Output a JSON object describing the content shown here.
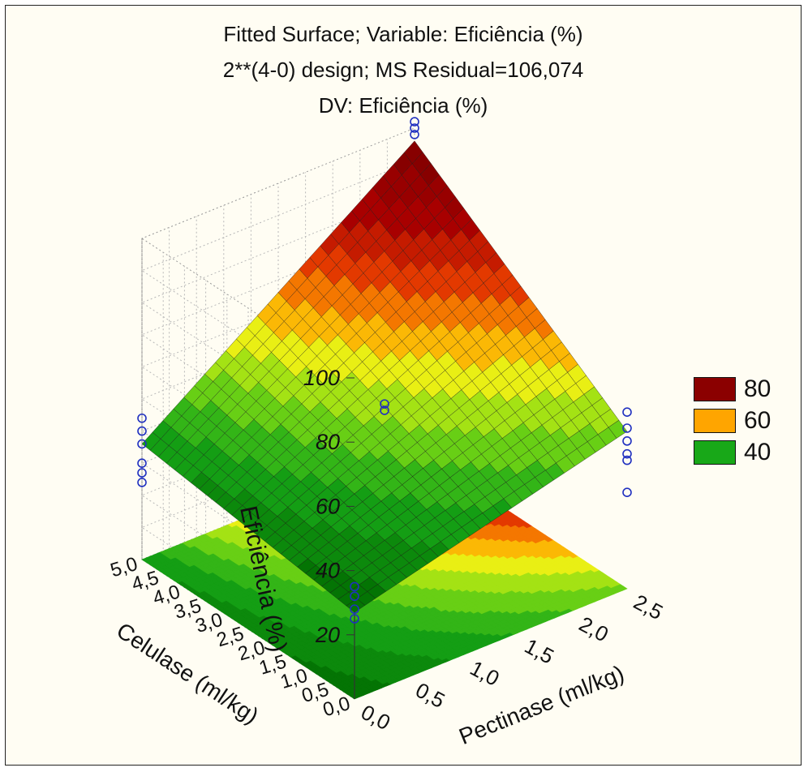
{
  "chart_data": {
    "type": "surface3d",
    "title_lines": [
      "Fitted Surface; Variable: Eficiência (%)",
      "2**(4-0) design; MS Residual=106,074",
      "DV: Eficiência (%)"
    ],
    "x_axis": {
      "label": "Pectinase (ml/kg)",
      "ticks": [
        "0,0",
        "0,5",
        "1,0",
        "1,5",
        "2,0",
        "2,5"
      ],
      "range": [
        0,
        2.5
      ]
    },
    "y_axis": {
      "label": "Celulase (ml/kg)",
      "ticks": [
        "0,0",
        "0,5",
        "1,0",
        "1,5",
        "2,0",
        "2,5",
        "3,0",
        "3,5",
        "4,0",
        "4,5",
        "5,0"
      ],
      "range": [
        0,
        5
      ]
    },
    "z_axis": {
      "label": "Eficiência (%)",
      "ticks": [
        "20",
        "40",
        "60",
        "80",
        "100"
      ],
      "range": [
        0,
        100
      ]
    },
    "surface_corners": {
      "pectinase_0_celulase_0": 27,
      "pectinase_2_5_celulase_0": 49,
      "pectinase_0_celulase_5": 36,
      "pectinase_2_5_celulase_5": 96
    },
    "observed_points": [
      {
        "pectinase": 0,
        "celulase": 0,
        "values": [
          32,
          35,
          28,
          25
        ]
      },
      {
        "pectinase": 2.5,
        "celulase": 0,
        "values": [
          55,
          50,
          46,
          42,
          40,
          30
        ]
      },
      {
        "pectinase": 0,
        "celulase": 5,
        "values": [
          36,
          40,
          44,
          24,
          27,
          30
        ]
      },
      {
        "pectinase": 2.5,
        "celulase": 5,
        "values": [
          102,
          100,
          98
        ]
      },
      {
        "pectinase": 1.25,
        "celulase": 2.5,
        "values": [
          53,
          51
        ]
      }
    ],
    "legend": {
      "placement": "right",
      "items": [
        {
          "label": "80",
          "color": "#8b0000"
        },
        {
          "label": "60",
          "color": "#ffa500"
        },
        {
          "label": "40",
          "color": "#18a818"
        }
      ]
    },
    "grid": true
  }
}
